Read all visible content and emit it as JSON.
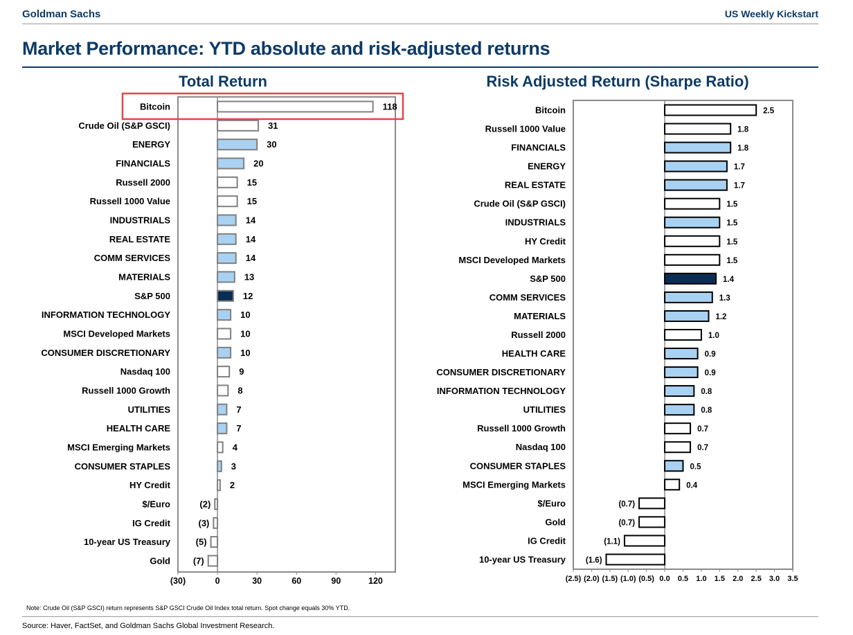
{
  "header": {
    "brand": "Goldman Sachs",
    "publication": "US Weekly Kickstart"
  },
  "title": "Market Performance: YTD absolute and risk-adjusted returns",
  "footer": {
    "note": "Note: Crude Oil (S&P GSCI) return represents S&P GSCI Crude Oil Index total return. Spot change equals 30% YTD.",
    "source": "Source: Haver, FactSet, and Goldman Sachs Global Investment Research."
  },
  "colors": {
    "sector": "#a9d2f2",
    "sp500": "#0b2d55",
    "other": "#ffffff",
    "highlight": "#e0454b",
    "title": "#0d3a66"
  },
  "chart_data": [
    {
      "type": "bar",
      "orientation": "horizontal",
      "title": "Total Return",
      "xlim": [
        -30,
        135
      ],
      "ticks": [
        -30,
        0,
        30,
        60,
        90,
        120
      ],
      "tick_labels": [
        "(30)",
        "0",
        "30",
        "60",
        "90",
        "120"
      ],
      "highlighted": "Bitcoin",
      "categories": [
        "Bitcoin",
        "Crude Oil (S&P GSCI)",
        "ENERGY",
        "FINANCIALS",
        "Russell 2000",
        "Russell 1000 Value",
        "INDUSTRIALS",
        "REAL ESTATE",
        "COMM SERVICES",
        "MATERIALS",
        "S&P 500",
        "INFORMATION TECHNOLOGY",
        "MSCI Developed Markets",
        "CONSUMER DISCRETIONARY",
        "Nasdaq 100",
        "Russell 1000 Growth",
        "UTILITIES",
        "HEALTH CARE",
        "MSCI Emerging Markets",
        "CONSUMER STAPLES",
        "HY Credit",
        "$/Euro",
        "IG Credit",
        "10-year US Treasury",
        "Gold"
      ],
      "values": [
        118,
        31,
        30,
        20,
        15,
        15,
        14,
        14,
        14,
        13,
        12,
        10,
        10,
        10,
        9,
        8,
        7,
        7,
        4,
        3,
        2,
        -2,
        -3,
        -5,
        -7
      ],
      "labels": [
        "118",
        "31",
        "30",
        "20",
        "15",
        "15",
        "14",
        "14",
        "14",
        "13",
        "12",
        "10",
        "10",
        "10",
        "9",
        "8",
        "7",
        "7",
        "4",
        "3",
        "2",
        "(2)",
        "(3)",
        "(5)",
        "(7)"
      ]
    },
    {
      "type": "bar",
      "orientation": "horizontal",
      "title": "Risk Adjusted Return (Sharpe Ratio)",
      "xlim": [
        -2.5,
        3.5
      ],
      "ticks": [
        -2.5,
        -2,
        -1.5,
        -1,
        -0.5,
        0,
        0.5,
        1,
        1.5,
        2,
        2.5,
        3,
        3.5
      ],
      "tick_labels": [
        "(2.5)",
        "(2.0)",
        "(1.5)",
        "(1.0)",
        "(0.5)",
        "0.0",
        "0.5",
        "1.0",
        "1.5",
        "2.0",
        "2.5",
        "3.0",
        "3.5"
      ],
      "categories": [
        "Bitcoin",
        "Russell 1000 Value",
        "FINANCIALS",
        "ENERGY",
        "REAL ESTATE",
        "Crude Oil (S&P GSCI)",
        "INDUSTRIALS",
        "HY Credit",
        "MSCI Developed Markets",
        "S&P 500",
        "COMM SERVICES",
        "MATERIALS",
        "Russell 2000",
        "HEALTH CARE",
        "CONSUMER DISCRETIONARY",
        "INFORMATION TECHNOLOGY",
        "UTILITIES",
        "Russell 1000 Growth",
        "Nasdaq 100",
        "CONSUMER STAPLES",
        "MSCI Emerging Markets",
        "$/Euro",
        "Gold",
        "IG Credit",
        "10-year US Treasury"
      ],
      "values": [
        2.5,
        1.8,
        1.8,
        1.7,
        1.7,
        1.5,
        1.5,
        1.5,
        1.5,
        1.4,
        1.3,
        1.2,
        1.0,
        0.9,
        0.9,
        0.8,
        0.8,
        0.7,
        0.7,
        0.5,
        0.4,
        -0.7,
        -0.7,
        -1.1,
        -1.6
      ],
      "labels": [
        "2.5",
        "1.8",
        "1.8",
        "1.7",
        "1.7",
        "1.5",
        "1.5",
        "1.5",
        "1.5",
        "1.4",
        "1.3",
        "1.2",
        "1.0",
        "0.9",
        "0.9",
        "0.8",
        "0.8",
        "0.7",
        "0.7",
        "0.5",
        "0.4",
        "(0.7)",
        "(0.7)",
        "(1.1)",
        "(1.6)"
      ]
    }
  ]
}
